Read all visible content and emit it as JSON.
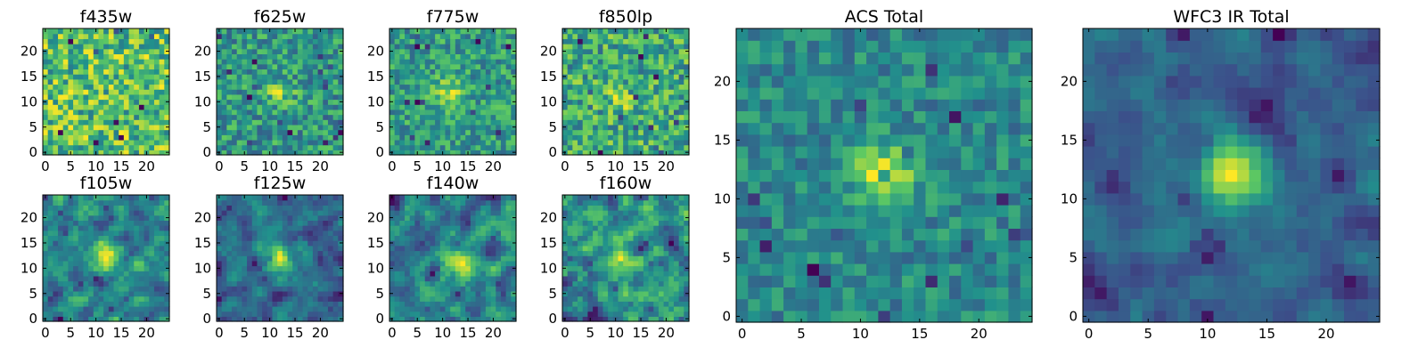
{
  "figure": {
    "colormap": "viridis",
    "colormap_stops": [
      "#440154",
      "#3b528b",
      "#21918c",
      "#5ec962",
      "#fde725"
    ]
  },
  "chart_data": [
    {
      "type": "heatmap",
      "title": "f435w",
      "grid_size": [
        25,
        25
      ],
      "xlim": [
        0,
        24
      ],
      "ylim": [
        0,
        24
      ],
      "xticks": [
        0,
        5,
        10,
        15,
        20
      ],
      "yticks": [
        0,
        5,
        10,
        15,
        20
      ],
      "source_peak": null,
      "peak_strength": 0.0,
      "noise": 0.32,
      "smooth": 0,
      "seed": 11
    },
    {
      "type": "heatmap",
      "title": "f625w",
      "grid_size": [
        25,
        25
      ],
      "xlim": [
        0,
        24
      ],
      "ylim": [
        0,
        24
      ],
      "xticks": [
        0,
        5,
        10,
        15,
        20
      ],
      "yticks": [
        0,
        5,
        10,
        15,
        20
      ],
      "source_peak": [
        12,
        12
      ],
      "peak_strength": 0.35,
      "noise": 0.3,
      "smooth": 0,
      "seed": 22
    },
    {
      "type": "heatmap",
      "title": "f775w",
      "grid_size": [
        25,
        25
      ],
      "xlim": [
        0,
        24
      ],
      "ylim": [
        0,
        24
      ],
      "xticks": [
        0,
        5,
        10,
        15,
        20
      ],
      "yticks": [
        0,
        5,
        10,
        15,
        20
      ],
      "source_peak": [
        11,
        12
      ],
      "peak_strength": 0.45,
      "noise": 0.28,
      "smooth": 0,
      "seed": 33
    },
    {
      "type": "heatmap",
      "title": "f850lp",
      "grid_size": [
        25,
        25
      ],
      "xlim": [
        0,
        24
      ],
      "ylim": [
        0,
        24
      ],
      "xticks": [
        0,
        5,
        10,
        15,
        20
      ],
      "yticks": [
        0,
        5,
        10,
        15,
        20
      ],
      "source_peak": [
        11,
        11
      ],
      "peak_strength": 0.25,
      "noise": 0.32,
      "smooth": 0,
      "seed": 44
    },
    {
      "type": "heatmap",
      "title": "f105w",
      "grid_size": [
        25,
        25
      ],
      "xlim": [
        0,
        24
      ],
      "ylim": [
        0,
        24
      ],
      "xticks": [
        0,
        5,
        10,
        15,
        20
      ],
      "yticks": [
        0,
        5,
        10,
        15,
        20
      ],
      "source_peak": [
        12,
        12
      ],
      "peak_strength": 0.3,
      "noise": 0.26,
      "smooth": 1,
      "seed": 55
    },
    {
      "type": "heatmap",
      "title": "f125w",
      "grid_size": [
        25,
        25
      ],
      "xlim": [
        0,
        24
      ],
      "ylim": [
        0,
        24
      ],
      "xticks": [
        0,
        5,
        10,
        15,
        20
      ],
      "yticks": [
        0,
        5,
        10,
        15,
        20
      ],
      "source_peak": [
        12,
        12
      ],
      "peak_strength": 0.35,
      "noise": 0.26,
      "smooth": 1,
      "seed": 66
    },
    {
      "type": "heatmap",
      "title": "f140w",
      "grid_size": [
        25,
        25
      ],
      "xlim": [
        0,
        24
      ],
      "ylim": [
        0,
        24
      ],
      "xticks": [
        0,
        5,
        10,
        15,
        20
      ],
      "yticks": [
        0,
        5,
        10,
        15,
        20
      ],
      "source_peak": [
        13,
        11
      ],
      "peak_strength": 0.3,
      "noise": 0.26,
      "smooth": 1,
      "seed": 77
    },
    {
      "type": "heatmap",
      "title": "f160w",
      "grid_size": [
        25,
        25
      ],
      "xlim": [
        0,
        24
      ],
      "ylim": [
        0,
        24
      ],
      "xticks": [
        0,
        5,
        10,
        15,
        20
      ],
      "yticks": [
        0,
        5,
        10,
        15,
        20
      ],
      "source_peak": [
        12,
        12
      ],
      "peak_strength": 0.25,
      "noise": 0.3,
      "smooth": 1,
      "seed": 88
    },
    {
      "type": "heatmap",
      "title": "ACS Total",
      "grid_size": [
        25,
        25
      ],
      "xlim": [
        0,
        24
      ],
      "ylim": [
        0,
        24
      ],
      "xticks": [
        0,
        5,
        10,
        15,
        20
      ],
      "yticks": [
        0,
        5,
        10,
        15,
        20
      ],
      "source_peak": [
        12,
        12
      ],
      "peak_strength": 0.6,
      "noise": 0.22,
      "smooth": 0,
      "seed": 99
    },
    {
      "type": "heatmap",
      "title": "WFC3 IR Total",
      "grid_size": [
        25,
        25
      ],
      "xlim": [
        0,
        24
      ],
      "ylim": [
        0,
        24
      ],
      "xticks": [
        0,
        5,
        10,
        15,
        20
      ],
      "yticks": [
        0,
        5,
        10,
        15,
        20
      ],
      "source_peak": [
        12,
        12
      ],
      "peak_strength": 0.6,
      "noise": 0.2,
      "smooth": 1,
      "seed": 111
    }
  ]
}
